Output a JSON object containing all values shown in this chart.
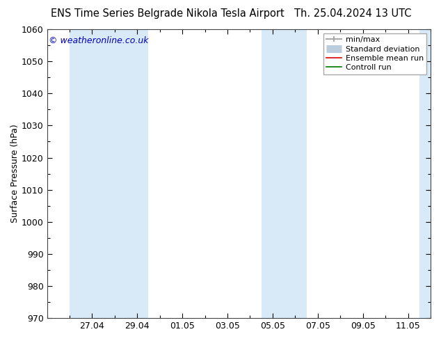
{
  "title_left": "ENS Time Series Belgrade Nikola Tesla Airport",
  "title_right": "Th. 25.04.2024 13 UTC",
  "ylabel": "Surface Pressure (hPa)",
  "ylim": [
    970,
    1060
  ],
  "yticks": [
    970,
    980,
    990,
    1000,
    1010,
    1020,
    1030,
    1040,
    1050,
    1060
  ],
  "xlabel_dates": [
    "27.04",
    "29.04",
    "01.05",
    "03.05",
    "05.05",
    "07.05",
    "09.05",
    "11.05"
  ],
  "xtick_positions": [
    2,
    4,
    6,
    8,
    10,
    12,
    14,
    16
  ],
  "xlim": [
    0,
    17
  ],
  "watermark": "© weatheronline.co.uk",
  "watermark_color": "#0000bb",
  "background_color": "#ffffff",
  "plot_bg_color": "#ffffff",
  "shaded_color": "#d8eaf8",
  "shaded_ranges": [
    [
      1,
      4.5
    ],
    [
      9.5,
      11.5
    ],
    [
      16.5,
      17
    ]
  ],
  "legend_items": [
    {
      "label": "min/max",
      "color": "#999999",
      "type": "errorbar"
    },
    {
      "label": "Standard deviation",
      "color": "#bbccdd",
      "type": "rect"
    },
    {
      "label": "Ensemble mean run",
      "color": "#dd0000",
      "type": "line"
    },
    {
      "label": "Controll run",
      "color": "#007700",
      "type": "line"
    }
  ],
  "title_fontsize": 10.5,
  "tick_fontsize": 9,
  "ylabel_fontsize": 9,
  "watermark_fontsize": 9
}
